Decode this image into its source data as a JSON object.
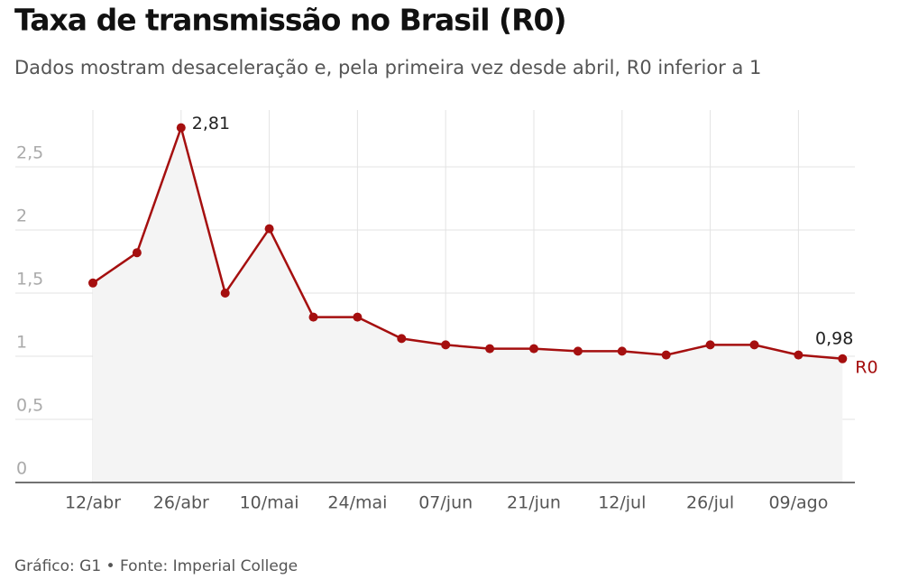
{
  "chart_data": {
    "type": "line",
    "title": "Taxa de transmissão no Brasil (R0)",
    "subtitle": "Dados mostram desaceleração e, pela primeira vez desde abril, R0 inferior a 1",
    "source": "Gráfico: G1 • Fonte: Imperial College",
    "categories": [
      "12/abr",
      null,
      "26/abr",
      null,
      "10/mai",
      null,
      "24/mai",
      null,
      "07/jun",
      null,
      "21/jun",
      null,
      "12/jul",
      null,
      "26/jul",
      null,
      "09/ago",
      null
    ],
    "series": [
      {
        "name": "R0",
        "color": "#a50f0f",
        "values": [
          1.58,
          1.82,
          2.81,
          1.5,
          2.01,
          1.31,
          1.31,
          1.14,
          1.09,
          1.06,
          1.06,
          1.04,
          1.04,
          1.01,
          1.09,
          1.09,
          1.01,
          0.98
        ],
        "value_labels": [
          null,
          null,
          "2,81",
          null,
          null,
          null,
          null,
          null,
          null,
          null,
          null,
          null,
          null,
          null,
          null,
          null,
          null,
          "0,98"
        ]
      }
    ],
    "ylim": [
      0,
      2.95
    ],
    "yticks": [
      0,
      {
        "value": 0.5,
        "label": "0,5"
      },
      1,
      {
        "value": 1.5,
        "label": "1,5"
      },
      2,
      {
        "value": 2.5,
        "label": "2,5"
      }
    ],
    "grid": true
  }
}
